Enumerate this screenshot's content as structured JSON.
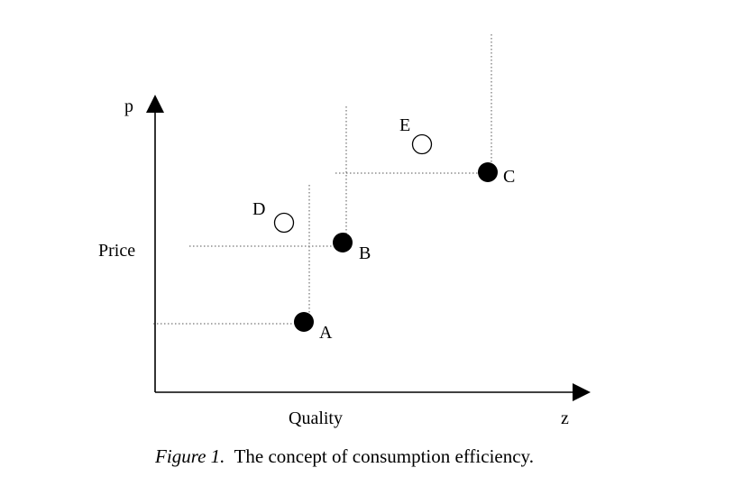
{
  "axes": {
    "y_symbol": "p",
    "y_label": "Price",
    "x_label": "Quality",
    "x_symbol": "z"
  },
  "points": [
    {
      "label": "A",
      "filled": true
    },
    {
      "label": "B",
      "filled": true
    },
    {
      "label": "C",
      "filled": true
    },
    {
      "label": "D",
      "filled": false
    },
    {
      "label": "E",
      "filled": false
    }
  ],
  "caption": {
    "label": "Figure 1.",
    "text": "The concept of consumption efficiency."
  }
}
